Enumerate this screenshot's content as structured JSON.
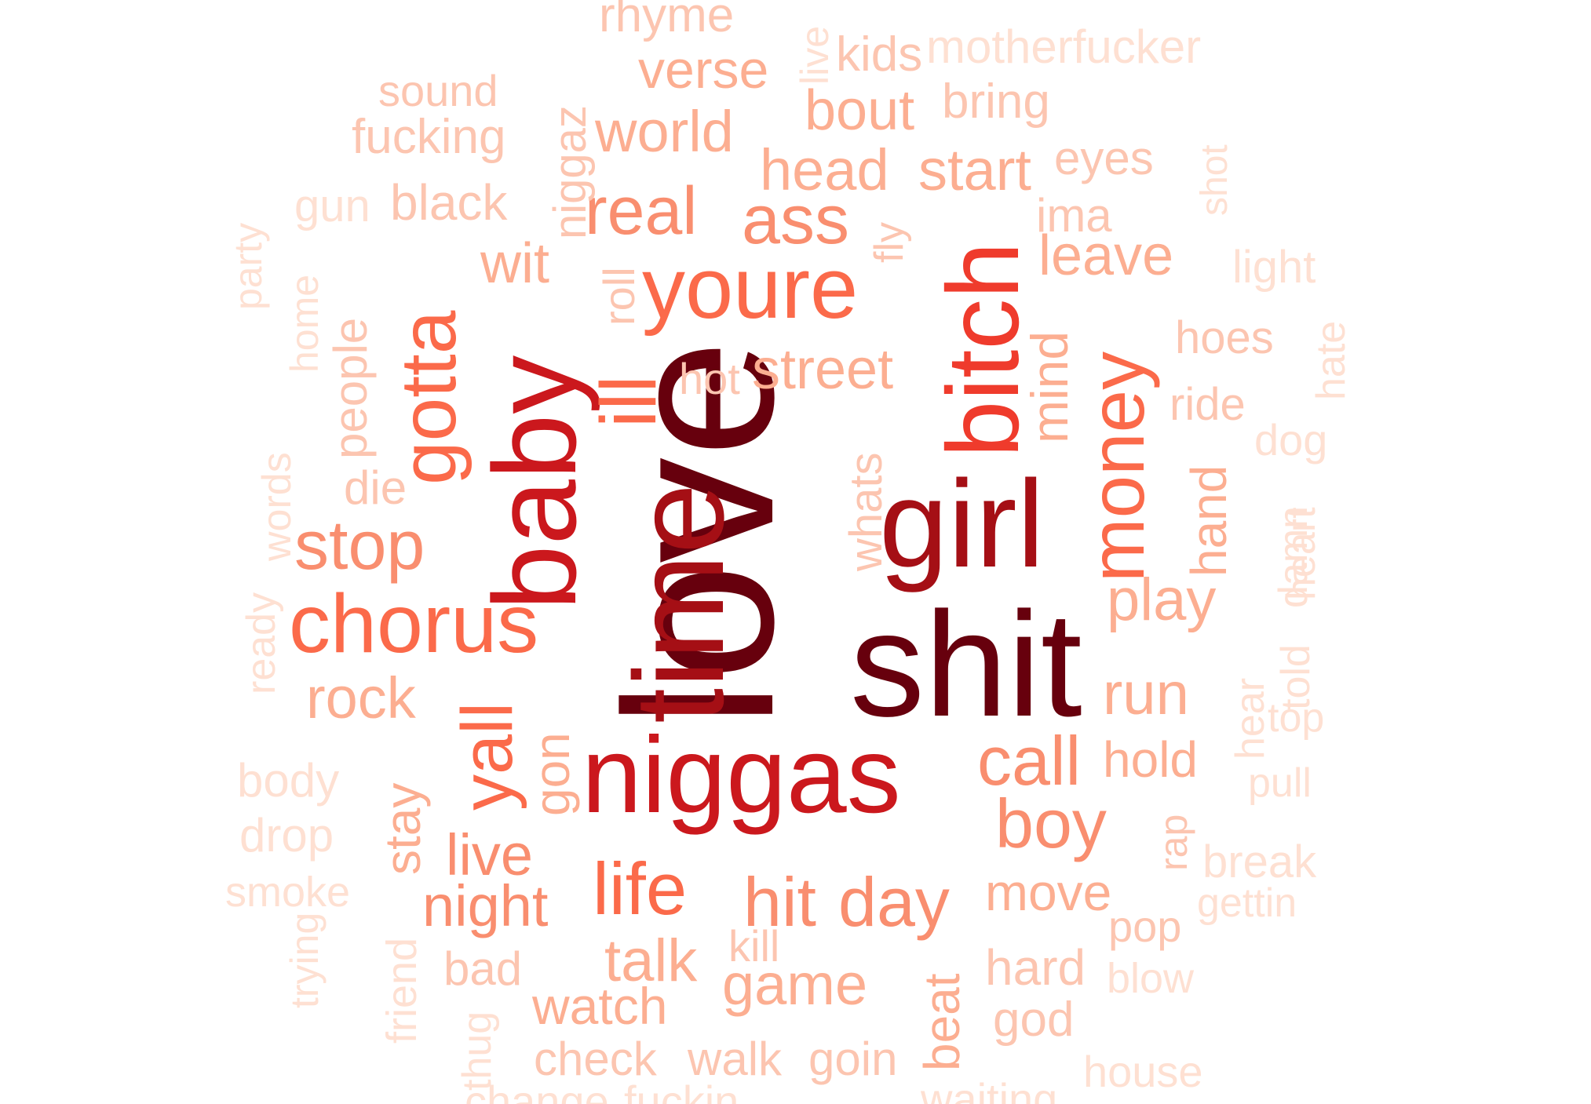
{
  "word_cloud": {
    "palette": {
      "darkest": "#67000d",
      "dark": "#a50f15",
      "red": "#cb181d",
      "mid": "#ef3b2c",
      "salmon": "#fb6a4a",
      "light_salmon": "#f98e6f",
      "pale": "#fcae91",
      "paler": "#fcc5b0",
      "palest": "#fee0d2"
    },
    "words": [
      {
        "text": "love",
        "color": "#67000d"
      },
      {
        "text": "shit",
        "color": "#67000d"
      },
      {
        "text": "time",
        "color": "#a50f15"
      },
      {
        "text": "girl",
        "color": "#a50f15"
      },
      {
        "text": "niggas",
        "color": "#cb181d"
      },
      {
        "text": "baby",
        "color": "#cb181d"
      },
      {
        "text": "bitch",
        "color": "#ef3b2c"
      },
      {
        "text": "youre",
        "color": "#fb6a4a"
      },
      {
        "text": "chorus",
        "color": "#fb6a4a"
      },
      {
        "text": "ill",
        "color": "#fb6a4a"
      },
      {
        "text": "money",
        "color": "#fb6a4a"
      },
      {
        "text": "gotta",
        "color": "#fb6a4a"
      },
      {
        "text": "yall",
        "color": "#fb6a4a"
      },
      {
        "text": "life",
        "color": "#fb6a4a"
      },
      {
        "text": "call",
        "color": "#f98e6f"
      },
      {
        "text": "boy",
        "color": "#f98e6f"
      },
      {
        "text": "stop",
        "color": "#f98e6f"
      },
      {
        "text": "day",
        "color": "#f98e6f"
      },
      {
        "text": "hit",
        "color": "#f98e6f"
      },
      {
        "text": "ass",
        "color": "#f98e6f"
      },
      {
        "text": "real",
        "color": "#f98e6f"
      },
      {
        "text": "night",
        "color": "#f98e6f"
      },
      {
        "text": "live",
        "color": "#f98e6f"
      },
      {
        "text": "play",
        "color": "#fcae91"
      },
      {
        "text": "run",
        "color": "#fcae91"
      },
      {
        "text": "head",
        "color": "#fcae91"
      },
      {
        "text": "start",
        "color": "#fcae91"
      },
      {
        "text": "street",
        "color": "#fcae91"
      },
      {
        "text": "rock",
        "color": "#fcae91"
      },
      {
        "text": "world",
        "color": "#fcae91"
      },
      {
        "text": "bout",
        "color": "#fcae91"
      },
      {
        "text": "verse",
        "color": "#fcae91"
      },
      {
        "text": "leave",
        "color": "#fcae91"
      },
      {
        "text": "wit",
        "color": "#fcae91"
      },
      {
        "text": "talk",
        "color": "#fcae91"
      },
      {
        "text": "game",
        "color": "#fcae91"
      },
      {
        "text": "move",
        "color": "#fcae91"
      },
      {
        "text": "hold",
        "color": "#fcae91"
      },
      {
        "text": "watch",
        "color": "#fcae91"
      },
      {
        "text": "beat",
        "color": "#fcae91"
      },
      {
        "text": "mind",
        "color": "#fcae91"
      },
      {
        "text": "hand",
        "color": "#fcae91"
      },
      {
        "text": "gon",
        "color": "#fcae91"
      },
      {
        "text": "stay",
        "color": "#fcae91"
      },
      {
        "text": "people",
        "color": "#fcc5b0"
      },
      {
        "text": "eyes",
        "color": "#fcc5b0"
      },
      {
        "text": "ima",
        "color": "#fcc5b0"
      },
      {
        "text": "hoes",
        "color": "#fcc5b0"
      },
      {
        "text": "ride",
        "color": "#fcc5b0"
      },
      {
        "text": "whats",
        "color": "#fcc5b0"
      },
      {
        "text": "hot",
        "color": "#fcc5b0"
      },
      {
        "text": "roll",
        "color": "#fcc5b0"
      },
      {
        "text": "fly",
        "color": "#fcc5b0"
      },
      {
        "text": "black",
        "color": "#fcc5b0"
      },
      {
        "text": "fucking",
        "color": "#fcc5b0"
      },
      {
        "text": "niggaz",
        "color": "#fcc5b0"
      },
      {
        "text": "bring",
        "color": "#fcc5b0"
      },
      {
        "text": "kids",
        "color": "#fcc5b0"
      },
      {
        "text": "rhyme",
        "color": "#fcc5b0"
      },
      {
        "text": "sound",
        "color": "#fcc5b0"
      },
      {
        "text": "check",
        "color": "#fcc5b0"
      },
      {
        "text": "walk",
        "color": "#fcc5b0"
      },
      {
        "text": "goin",
        "color": "#fcc5b0"
      },
      {
        "text": "kill",
        "color": "#fcc5b0"
      },
      {
        "text": "bad",
        "color": "#fcc5b0"
      },
      {
        "text": "hard",
        "color": "#fcc5b0"
      },
      {
        "text": "god",
        "color": "#fcc5b0"
      },
      {
        "text": "pop",
        "color": "#fcc5b0"
      },
      {
        "text": "rap",
        "color": "#fcc5b0"
      },
      {
        "text": "die",
        "color": "#fcc5b0"
      },
      {
        "text": "motherfucker",
        "color": "#fee0d2"
      },
      {
        "text": "live",
        "color": "#fee0d2"
      },
      {
        "text": "shot",
        "color": "#fee0d2"
      },
      {
        "text": "light",
        "color": "#fee0d2"
      },
      {
        "text": "hate",
        "color": "#fee0d2"
      },
      {
        "text": "dog",
        "color": "#fee0d2"
      },
      {
        "text": "damn",
        "color": "#fee0d2"
      },
      {
        "text": "heart",
        "color": "#fee0d2"
      },
      {
        "text": "told",
        "color": "#fee0d2"
      },
      {
        "text": "top",
        "color": "#fee0d2"
      },
      {
        "text": "hear",
        "color": "#fee0d2"
      },
      {
        "text": "pull",
        "color": "#fee0d2"
      },
      {
        "text": "break",
        "color": "#fee0d2"
      },
      {
        "text": "gettin",
        "color": "#fee0d2"
      },
      {
        "text": "blow",
        "color": "#fee0d2"
      },
      {
        "text": "house",
        "color": "#fee0d2"
      },
      {
        "text": "waiting",
        "color": "#fee0d2"
      },
      {
        "text": "fuckin",
        "color": "#fee0d2"
      },
      {
        "text": "change",
        "color": "#fee0d2"
      },
      {
        "text": "thug",
        "color": "#fee0d2"
      },
      {
        "text": "friend",
        "color": "#fee0d2"
      },
      {
        "text": "trying",
        "color": "#fee0d2"
      },
      {
        "text": "smoke",
        "color": "#fee0d2"
      },
      {
        "text": "drop",
        "color": "#fee0d2"
      },
      {
        "text": "body",
        "color": "#fee0d2"
      },
      {
        "text": "ready",
        "color": "#fee0d2"
      },
      {
        "text": "words",
        "color": "#fee0d2"
      },
      {
        "text": "home",
        "color": "#fee0d2"
      },
      {
        "text": "party",
        "color": "#fee0d2"
      },
      {
        "text": "gun",
        "color": "#fee0d2"
      }
    ]
  }
}
